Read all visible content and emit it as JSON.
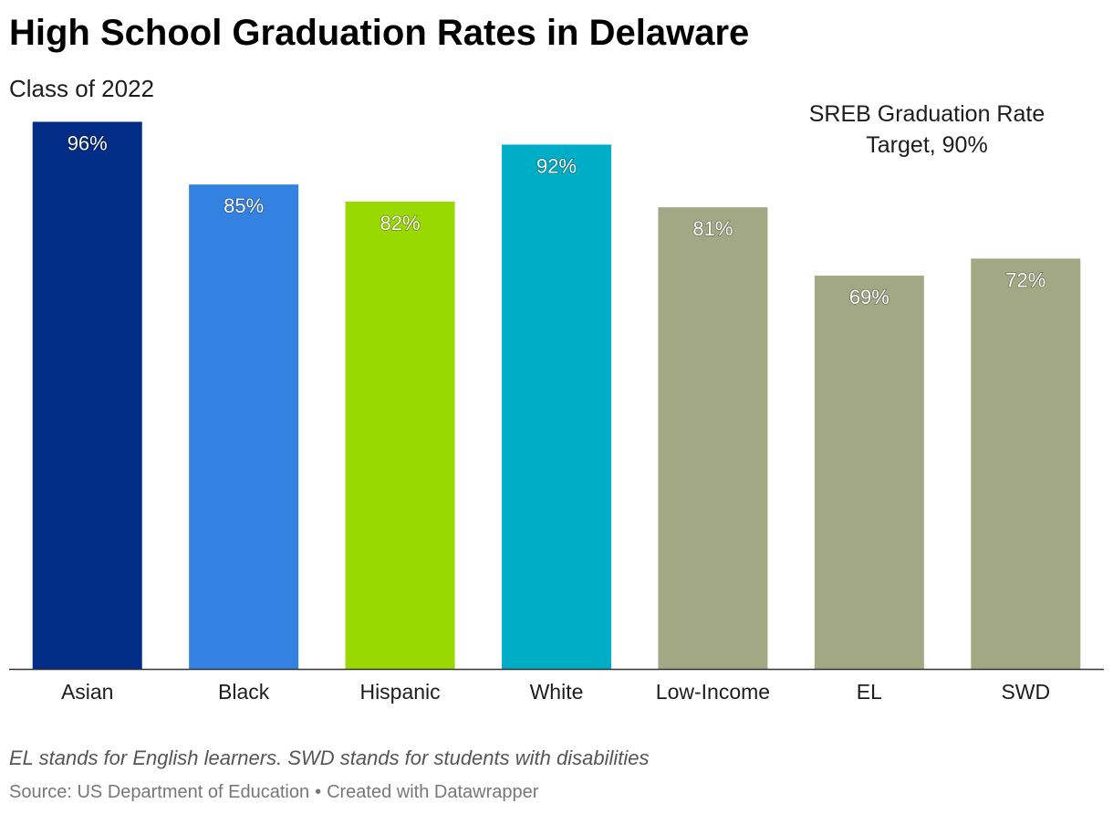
{
  "title": "High School Graduation Rates in Delaware",
  "subtitle": "Class of 2022",
  "annotation": {
    "line1": "SREB Graduation Rate",
    "line2": "Target, 90%"
  },
  "notes": "EL stands for English learners. SWD stands for students with disabilities",
  "source": {
    "text": "Source: US Department of Education",
    "separator": "•",
    "credit": "Created with Datawrapper"
  },
  "chart_data": {
    "type": "bar",
    "title": "High School Graduation Rates in Delaware",
    "subtitle": "Class of 2022",
    "categories": [
      "Asian",
      "Black",
      "Hispanic",
      "White",
      "Low-Income",
      "EL",
      "SWD"
    ],
    "values": [
      96,
      85,
      82,
      92,
      81,
      69,
      72
    ],
    "value_labels": [
      "96%",
      "85%",
      "82%",
      "92%",
      "81%",
      "69%",
      "72%"
    ],
    "colors": [
      "#012d86",
      "#3381e0",
      "#99d800",
      "#00adc6",
      "#a3a884",
      "#a3a884",
      "#a3a884"
    ],
    "ylim": [
      0,
      100
    ],
    "grid": false,
    "value_label_color": "#ffffff",
    "baseline_color": "#333333"
  }
}
